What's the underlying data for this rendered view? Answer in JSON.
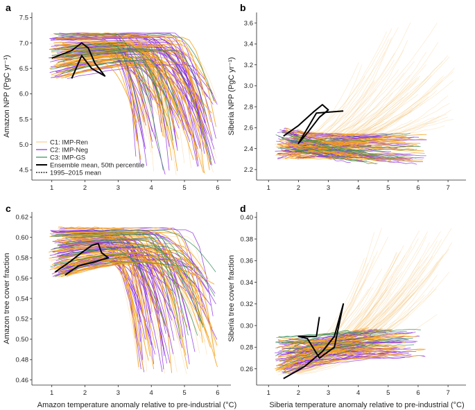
{
  "colors": {
    "c1": "#f0b14a",
    "c2": "#8a2be2",
    "c3": "#2e8b57",
    "orange": "#f5a21a",
    "mean": "#000000"
  },
  "legend": {
    "c1": "C1: IMP-Ren",
    "c2": "C2: IMP-Neg",
    "c3": "C3: IMP-GS",
    "mean": "Ensemble mean, 50th percentile",
    "hist": "1995–2015 mean"
  },
  "chart_data": [
    {
      "id": "a",
      "panel_label": "a",
      "type": "line",
      "ylabel": "Amazon NPP (PgC yr⁻¹)",
      "xlabel": "",
      "xlim": [
        0.4,
        6.4
      ],
      "ylim": [
        4.3,
        7.6
      ],
      "xticks": [
        1,
        2,
        3,
        4,
        5,
        6
      ],
      "xtick_labels": [
        "1",
        "2",
        "3",
        "4",
        "5",
        "6"
      ],
      "yticks": [
        4.5,
        5.0,
        5.5,
        6.0,
        6.5,
        7.0,
        7.5
      ],
      "ytick_labels": [
        "4.5",
        "5.0",
        "5.5",
        "6.0",
        "6.5",
        "7.0",
        "7.5"
      ],
      "mean_curve": [
        [
          1.0,
          6.7
        ],
        [
          1.6,
          6.85
        ],
        [
          1.9,
          7.0
        ],
        [
          2.1,
          6.9
        ],
        [
          2.3,
          6.6
        ],
        [
          2.6,
          6.35
        ],
        [
          2.2,
          6.5
        ],
        [
          1.9,
          6.75
        ],
        [
          1.6,
          6.3
        ]
      ],
      "spaghetti": {
        "start_x": [
          0.9,
          1.5
        ],
        "start_y": [
          6.3,
          7.2
        ],
        "end_x": [
          3.5,
          6.0
        ],
        "end_y": [
          4.4,
          6.0
        ],
        "shape": "decline"
      }
    },
    {
      "id": "b",
      "panel_label": "b",
      "type": "line",
      "ylabel": "Siberia NPP (PgC yr⁻¹)",
      "xlabel": "",
      "xlim": [
        0.6,
        7.6
      ],
      "ylim": [
        2.1,
        3.7
      ],
      "xticks": [
        1,
        2,
        3,
        4,
        5,
        6,
        7
      ],
      "xtick_labels": [
        "1",
        "2",
        "3",
        "4",
        "5",
        "6",
        "7"
      ],
      "yticks": [
        2.2,
        2.4,
        2.6,
        2.8,
        3.0,
        3.2,
        3.4,
        3.6
      ],
      "ytick_labels": [
        "2.2",
        "2.4",
        "2.6",
        "2.8",
        "3.0",
        "3.2",
        "3.4",
        "3.6"
      ],
      "mean_curve": [
        [
          1.5,
          2.52
        ],
        [
          2.0,
          2.62
        ],
        [
          2.5,
          2.75
        ],
        [
          2.8,
          2.82
        ],
        [
          3.0,
          2.77
        ],
        [
          2.7,
          2.7
        ],
        [
          2.3,
          2.55
        ],
        [
          2.0,
          2.45
        ],
        [
          2.6,
          2.74
        ],
        [
          3.5,
          2.76
        ]
      ],
      "spaghetti": {
        "start_x": [
          1.2,
          2.0
        ],
        "start_y": [
          2.3,
          2.6
        ],
        "end_x": [
          4.0,
          7.3
        ],
        "end_y": [
          2.25,
          3.6
        ],
        "shape": "rise"
      }
    },
    {
      "id": "c",
      "panel_label": "c",
      "type": "line",
      "ylabel": "Amazon tree cover fraction",
      "xlabel": "Amazon temperature anomaly relative to pre-industrial (°C)",
      "xlim": [
        0.4,
        6.4
      ],
      "ylim": [
        0.455,
        0.625
      ],
      "xticks": [
        1,
        2,
        3,
        4,
        5,
        6
      ],
      "xtick_labels": [
        "1",
        "2",
        "3",
        "4",
        "5",
        "6"
      ],
      "yticks": [
        0.46,
        0.48,
        0.5,
        0.52,
        0.54,
        0.56,
        0.58,
        0.6,
        0.62
      ],
      "ytick_labels": [
        "0.46",
        "0.48",
        "0.50",
        "0.52",
        "0.54",
        "0.56",
        "0.58",
        "0.60",
        "0.62"
      ],
      "mean_curve": [
        [
          1.1,
          0.566
        ],
        [
          1.5,
          0.575
        ],
        [
          1.9,
          0.585
        ],
        [
          2.2,
          0.592
        ],
        [
          2.4,
          0.594
        ],
        [
          2.5,
          0.585
        ],
        [
          2.7,
          0.58
        ],
        [
          2.3,
          0.576
        ],
        [
          1.8,
          0.572
        ],
        [
          1.4,
          0.563
        ]
      ],
      "spaghetti": {
        "start_x": [
          0.9,
          1.5
        ],
        "start_y": [
          0.56,
          0.61
        ],
        "end_x": [
          3.5,
          6.0
        ],
        "end_y": [
          0.465,
          0.57
        ],
        "shape": "decline"
      }
    },
    {
      "id": "d",
      "panel_label": "d",
      "type": "line",
      "ylabel": "Siberia tree cover fraction",
      "xlabel": "Siberia temperature anomaly relative to pre-industrial (°C)",
      "xlim": [
        0.6,
        7.6
      ],
      "ylim": [
        0.245,
        0.405
      ],
      "xticks": [
        1,
        2,
        3,
        4,
        5,
        6,
        7
      ],
      "xtick_labels": [
        "1",
        "2",
        "3",
        "4",
        "5",
        "6",
        "7"
      ],
      "yticks": [
        0.26,
        0.28,
        0.3,
        0.32,
        0.34,
        0.36,
        0.38,
        0.4
      ],
      "ytick_labels": [
        "0.26",
        "0.28",
        "0.30",
        "0.32",
        "0.34",
        "0.36",
        "0.38",
        "0.40"
      ],
      "mean_curve": [
        [
          1.5,
          0.251
        ],
        [
          2.2,
          0.262
        ],
        [
          2.8,
          0.276
        ],
        [
          3.2,
          0.29
        ],
        [
          3.5,
          0.32
        ],
        [
          3.2,
          0.28
        ],
        [
          2.7,
          0.27
        ],
        [
          2.3,
          0.288
        ],
        [
          2.0,
          0.29
        ],
        [
          2.6,
          0.29
        ],
        [
          2.7,
          0.308
        ]
      ],
      "spaghetti": {
        "start_x": [
          1.2,
          2.0
        ],
        "start_y": [
          0.255,
          0.29
        ],
        "end_x": [
          4.0,
          7.2
        ],
        "end_y": [
          0.27,
          0.395
        ],
        "shape": "rise"
      }
    }
  ]
}
